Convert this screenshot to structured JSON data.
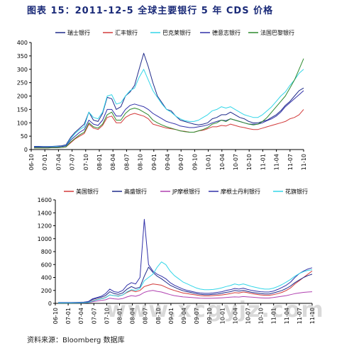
{
  "title": "图表 15：2011-12-5 全球主要银行 5 年 CDS 价格",
  "source": "资料来源：Bloomberg 数据库",
  "watermark": "www.xcgyjz.com",
  "chart_data": [
    {
      "type": "line",
      "title": "",
      "xlabel": "",
      "ylabel": "",
      "ylim": [
        0,
        400
      ],
      "yticks": [
        0,
        50,
        100,
        150,
        200,
        250,
        300,
        350,
        400
      ],
      "xticks": [
        "06-10",
        "07-01",
        "07-04",
        "07-07",
        "07-10",
        "08-01",
        "08-04",
        "08-07",
        "08-10",
        "09-01",
        "09-04",
        "09-07",
        "09-10",
        "10-01",
        "10-04",
        "10-07",
        "10-10",
        "11-01",
        "11-04",
        "11-07",
        "11-10"
      ],
      "legend_position": "top",
      "series": [
        {
          "name": "瑞士银行",
          "color": "#1f2a8a",
          "values": [
            12,
            12,
            11,
            11,
            12,
            13,
            14,
            18,
            45,
            65,
            80,
            95,
            140,
            110,
            105,
            135,
            195,
            190,
            150,
            160,
            200,
            215,
            240,
            300,
            360,
            310,
            250,
            200,
            175,
            150,
            145,
            125,
            110,
            105,
            100,
            95,
            92,
            95,
            100,
            115,
            120,
            130,
            130,
            140,
            130,
            120,
            115,
            105,
            100,
            100,
            105,
            110,
            120,
            130,
            145,
            165,
            180,
            200,
            220,
            230
          ]
        },
        {
          "name": "汇丰银行",
          "color": "#d23a3a",
          "values": [
            6,
            6,
            6,
            6,
            7,
            7,
            8,
            10,
            25,
            40,
            50,
            60,
            95,
            80,
            75,
            90,
            120,
            125,
            100,
            100,
            120,
            130,
            135,
            130,
            125,
            115,
            95,
            90,
            85,
            80,
            78,
            75,
            70,
            68,
            65,
            65,
            70,
            72,
            78,
            85,
            85,
            90,
            88,
            95,
            90,
            85,
            82,
            78,
            75,
            75,
            80,
            85,
            90,
            95,
            100,
            105,
            115,
            120,
            130,
            150
          ]
        },
        {
          "name": "巴克莱银行",
          "color": "#33d6e8",
          "values": [
            10,
            10,
            10,
            10,
            11,
            12,
            12,
            15,
            40,
            60,
            75,
            85,
            140,
            120,
            115,
            140,
            200,
            205,
            170,
            175,
            200,
            220,
            230,
            270,
            300,
            260,
            220,
            195,
            170,
            150,
            140,
            125,
            115,
            108,
            105,
            105,
            110,
            120,
            130,
            145,
            150,
            160,
            155,
            160,
            150,
            140,
            130,
            125,
            120,
            120,
            130,
            145,
            160,
            180,
            200,
            215,
            240,
            260,
            285,
            300
          ]
        },
        {
          "name": "德意志银行",
          "color": "#3030a8",
          "values": [
            9,
            9,
            9,
            9,
            10,
            10,
            11,
            14,
            35,
            50,
            65,
            75,
            110,
            95,
            90,
            110,
            150,
            150,
            125,
            125,
            150,
            165,
            170,
            165,
            160,
            150,
            135,
            125,
            115,
            105,
            100,
            95,
            88,
            85,
            82,
            82,
            85,
            88,
            92,
            100,
            105,
            110,
            108,
            115,
            110,
            105,
            100,
            95,
            95,
            95,
            100,
            108,
            115,
            125,
            140,
            160,
            175,
            190,
            205,
            220
          ]
        },
        {
          "name": "法国巴黎银行",
          "color": "#2d8a2d",
          "values": [
            6,
            6,
            6,
            6,
            7,
            7,
            8,
            10,
            28,
            42,
            55,
            65,
            100,
            85,
            80,
            95,
            130,
            140,
            110,
            110,
            135,
            150,
            155,
            150,
            140,
            130,
            110,
            100,
            92,
            85,
            80,
            75,
            70,
            67,
            65,
            65,
            70,
            75,
            82,
            95,
            100,
            110,
            105,
            115,
            110,
            105,
            100,
            95,
            92,
            95,
            105,
            120,
            140,
            160,
            180,
            200,
            230,
            260,
            300,
            340
          ]
        }
      ]
    },
    {
      "type": "line",
      "title": "",
      "xlabel": "",
      "ylabel": "",
      "ylim": [
        0,
        1600
      ],
      "yticks": [
        0,
        200,
        400,
        600,
        800,
        1000,
        1200,
        1400,
        1600
      ],
      "xticks": [
        "06-10",
        "07-01",
        "07-04",
        "07-07",
        "07-10",
        "08-01",
        "08-04",
        "08-07",
        "08-10",
        "09-01",
        "09-04",
        "09-07",
        "09-10",
        "10-01",
        "10-04",
        "10-07",
        "10-10",
        "11-01",
        "11-04",
        "11-07",
        "11-10"
      ],
      "legend_position": "top",
      "series": [
        {
          "name": "美国银行",
          "color": "#d23a3a",
          "values": [
            8,
            8,
            8,
            8,
            9,
            10,
            12,
            16,
            40,
            60,
            75,
            90,
            130,
            120,
            115,
            130,
            170,
            200,
            180,
            200,
            260,
            280,
            300,
            290,
            280,
            250,
            220,
            200,
            180,
            160,
            150,
            140,
            130,
            120,
            115,
            115,
            120,
            125,
            130,
            140,
            150,
            165,
            160,
            175,
            165,
            150,
            140,
            130,
            125,
            125,
            135,
            150,
            170,
            200,
            240,
            300,
            350,
            400,
            450,
            500
          ]
        },
        {
          "name": "高盛银行",
          "color": "#1f2a8a",
          "values": [
            12,
            12,
            12,
            12,
            13,
            15,
            18,
            25,
            60,
            80,
            95,
            120,
            180,
            150,
            140,
            160,
            220,
            260,
            230,
            250,
            420,
            560,
            480,
            420,
            380,
            330,
            280,
            250,
            220,
            195,
            180,
            165,
            150,
            140,
            135,
            135,
            140,
            145,
            155,
            170,
            180,
            200,
            190,
            200,
            185,
            170,
            160,
            150,
            145,
            145,
            160,
            180,
            200,
            230,
            270,
            320,
            360,
            400,
            430,
            450
          ]
        },
        {
          "name": "JP摩根银行",
          "color": "#b040b0",
          "values": [
            6,
            6,
            6,
            6,
            7,
            8,
            9,
            12,
            25,
            35,
            45,
            55,
            80,
            70,
            65,
            75,
            100,
            120,
            110,
            130,
            170,
            190,
            200,
            185,
            175,
            155,
            135,
            120,
            110,
            100,
            95,
            90,
            85,
            80,
            78,
            78,
            80,
            82,
            85,
            90,
            95,
            100,
            98,
            105,
            100,
            95,
            90,
            85,
            82,
            82,
            90,
            100,
            110,
            120,
            135,
            150,
            160,
            170,
            175,
            180
          ]
        },
        {
          "name": "摩根士丹利银行",
          "color": "#3030a8",
          "values": [
            12,
            12,
            12,
            12,
            14,
            16,
            20,
            28,
            70,
            90,
            110,
            150,
            220,
            180,
            170,
            200,
            280,
            320,
            300,
            400,
            1300,
            600,
            500,
            450,
            420,
            380,
            320,
            280,
            250,
            220,
            200,
            185,
            170,
            160,
            155,
            155,
            160,
            170,
            180,
            200,
            210,
            230,
            220,
            235,
            215,
            200,
            190,
            180,
            175,
            175,
            190,
            215,
            245,
            280,
            330,
            400,
            460,
            500,
            530,
            550
          ]
        },
        {
          "name": "花旗银行",
          "color": "#33d6e8",
          "values": [
            7,
            7,
            7,
            7,
            8,
            9,
            11,
            15,
            35,
            55,
            70,
            85,
            130,
            120,
            110,
            130,
            180,
            210,
            200,
            230,
            350,
            400,
            450,
            560,
            640,
            600,
            500,
            430,
            380,
            330,
            300,
            270,
            240,
            220,
            210,
            210,
            215,
            225,
            240,
            260,
            275,
            300,
            285,
            300,
            280,
            260,
            245,
            230,
            220,
            220,
            235,
            260,
            290,
            330,
            370,
            420,
            460,
            490,
            510,
            520
          ]
        }
      ]
    }
  ]
}
